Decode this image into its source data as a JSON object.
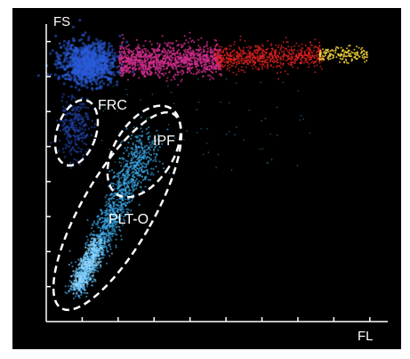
{
  "chart_data": {
    "type": "scatter",
    "title": "",
    "xlabel": "FL",
    "ylabel": "FS",
    "grid": false,
    "x_ticks_count": 9,
    "y_ticks_count": 8,
    "background": "#000000",
    "axis_color": "#ffffff",
    "gates": [
      {
        "name": "FRC",
        "color": "#ffffff",
        "style": "dashed"
      },
      {
        "name": "IPF",
        "color": "#ffffff",
        "style": "dashed"
      },
      {
        "name": "PLT-O",
        "color": "#ffffff",
        "style": "dashed"
      }
    ],
    "populations": [
      {
        "color": "#2a5bd8",
        "description": "dense cluster top-left"
      },
      {
        "color": "#d02d8c",
        "description": "high FS middle band"
      },
      {
        "color": "#e02222",
        "description": "high FS right band"
      },
      {
        "color": "#f2d23a",
        "description": "high FS far right"
      },
      {
        "color": "#3aa7e6",
        "description": "PLT-O / IPF elongated cloud"
      },
      {
        "color": "#1f3f9e",
        "description": "FRC cluster"
      }
    ]
  }
}
